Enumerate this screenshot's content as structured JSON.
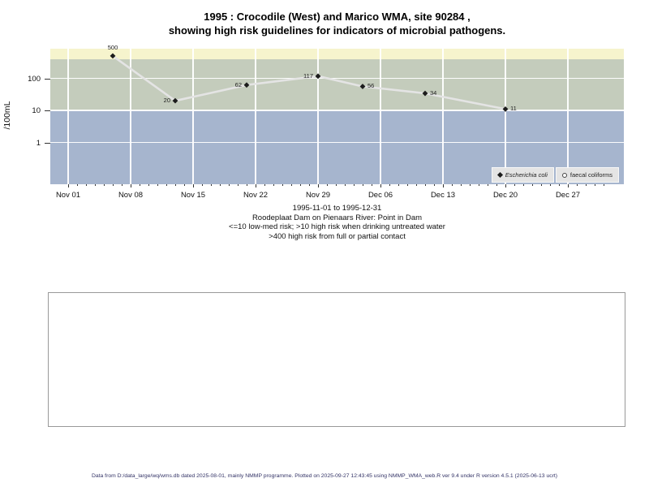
{
  "page": {
    "title_line1": "1995 : Crocodile (West) and Marico WMA, site 90284 ,",
    "title_line2": "showing high risk guidelines for indicators of microbial pathogens.",
    "footer": "Data from D:/data_large/wq/wms.db dated 2025-08-01, mainly NMMP programme. Plotted on 2025-09-27 12:43:45 using NMMP_WMA_web.R ver 9.4 under R version 4.5.1 (2025-06-13 ucrt)"
  },
  "chart_data": {
    "type": "line",
    "title": "1995 : Crocodile (West) and Marico WMA, site 90284 , showing high risk guidelines for indicators of microbial pathogens.",
    "ylabel": "/100mL",
    "xlabel": "",
    "y_scale": "log10",
    "ylim": [
      0.05,
      840
    ],
    "y_ticks": [
      100,
      10,
      1
    ],
    "x_start": "1995-11-01",
    "x_end": "1995-12-31",
    "grid": "white major gridlines on",
    "legend_position": "bottom-right inside plot",
    "x_ticks": [
      {
        "date": "1995-11-01",
        "label": "Nov 01"
      },
      {
        "date": "1995-11-08",
        "label": "Nov 08"
      },
      {
        "date": "1995-11-15",
        "label": "Nov 15"
      },
      {
        "date": "1995-11-22",
        "label": "Nov 22"
      },
      {
        "date": "1995-11-29",
        "label": "Nov 29"
      },
      {
        "date": "1995-12-06",
        "label": "Dec 06"
      },
      {
        "date": "1995-12-13",
        "label": "Dec 13"
      },
      {
        "date": "1995-12-20",
        "label": "Dec 20"
      },
      {
        "date": "1995-12-27",
        "label": "Dec 27"
      }
    ],
    "bands": [
      {
        "name": "above-400-high-risk-contact",
        "from": 400,
        "to": null,
        "color": "#f6f4cd"
      },
      {
        "name": "10-to-400-high-risk-drinking",
        "from": 10,
        "to": 400,
        "color": "#c4ccbc"
      },
      {
        "name": "below-10-low-med-risk",
        "from": null,
        "to": 10,
        "color": "#a6b5ce"
      }
    ],
    "series": [
      {
        "name": "Escherichia coli",
        "marker": "filled-diamond",
        "line_color": "#e4e4e4",
        "marker_color": "#1c1c1c",
        "points": [
          {
            "date": "1995-11-06",
            "value": 500,
            "label_pos": "above"
          },
          {
            "date": "1995-11-13",
            "value": 20,
            "label_pos": "left"
          },
          {
            "date": "1995-11-21",
            "value": 62,
            "label_pos": "left"
          },
          {
            "date": "1995-11-29",
            "value": 117,
            "label_pos": "left"
          },
          {
            "date": "1995-12-04",
            "value": 56,
            "label_pos": "right"
          },
          {
            "date": "1995-12-11",
            "value": 34,
            "label_pos": "right"
          },
          {
            "date": "1995-12-20",
            "value": 11,
            "label_pos": "right"
          }
        ]
      },
      {
        "name": "faecal coliforms",
        "marker": "open-circle",
        "points": []
      }
    ],
    "legend": [
      {
        "label": "Escherichia coli",
        "marker": "filled-diamond",
        "italic": true
      },
      {
        "label": "faecal coliforms",
        "marker": "open-circle",
        "italic": false
      }
    ],
    "captions": [
      "1995-11-01 to 1995-12-31",
      "Roodeplaat Dam on Pienaars River: Point in Dam",
      "<=10 low-med risk; >10 high risk when drinking untreated water",
      ">400 high risk from full or partial contact"
    ]
  }
}
